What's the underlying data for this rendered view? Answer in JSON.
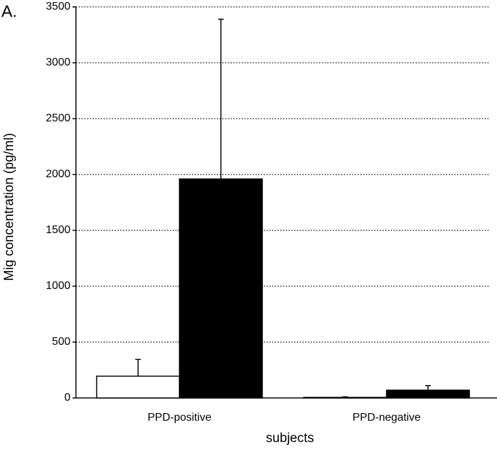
{
  "chart_data": {
    "type": "bar",
    "panel_label": "A.",
    "y_label": "Mig concentration (pg/ml)",
    "x_label": "subjects",
    "categories": [
      "PPD-positive",
      "PPD-negative"
    ],
    "series": [
      {
        "color": "#ffffff",
        "values": [
          195,
          5
        ],
        "errors": [
          150,
          5
        ]
      },
      {
        "color": "#000000",
        "values": [
          1960,
          70
        ],
        "errors": [
          1430,
          40
        ]
      }
    ],
    "ylim": [
      0,
      3500
    ],
    "yticks": [
      0,
      500,
      1000,
      1500,
      2000,
      2500,
      3000,
      3500
    ],
    "grid": true
  }
}
